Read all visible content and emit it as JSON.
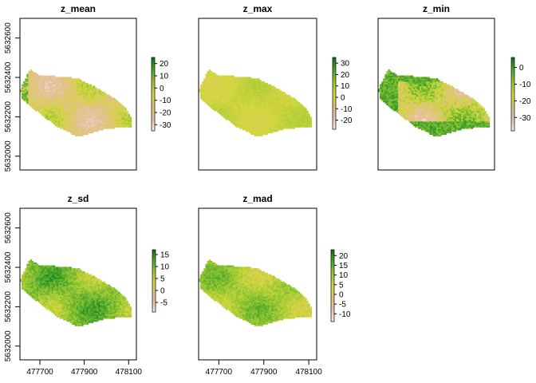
{
  "chart_data": [
    {
      "type": "heatmap",
      "title": "z_mean",
      "yticks": [
        5632000,
        5632200,
        5632400,
        5632600
      ],
      "xticks": [],
      "legend_ticks": [
        20,
        10,
        0,
        -10,
        -20,
        -30
      ],
      "legend_range": [
        -35,
        25
      ],
      "cell_range": [
        -33,
        8
      ],
      "palette": [
        "#f4f0ee",
        "#e8c2ad",
        "#dfc27f",
        "#d6d640",
        "#9cc934",
        "#4fa82c",
        "#067a1b"
      ],
      "legend": "right"
    },
    {
      "type": "heatmap",
      "title": "z_max",
      "yticks": [],
      "xticks": [],
      "legend_ticks": [
        30,
        20,
        10,
        0,
        -10,
        -20
      ],
      "legend_range": [
        -28,
        35
      ],
      "cell_range": [
        -2,
        12
      ],
      "palette": [
        "#f4f0ee",
        "#e8c2ad",
        "#dfc27f",
        "#d6d640",
        "#9cc934",
        "#4fa82c",
        "#067a1b"
      ],
      "legend": "right"
    },
    {
      "type": "heatmap",
      "title": "z_min",
      "yticks": [],
      "xticks": [],
      "legend_ticks": [
        0,
        -10,
        -20,
        -30
      ],
      "legend_range": [
        -38,
        6
      ],
      "cell_range": [
        -38,
        2
      ],
      "palette": [
        "#f4f0ee",
        "#e8c2ad",
        "#dfc27f",
        "#d6d640",
        "#9cc934",
        "#4fa82c",
        "#067a1b"
      ],
      "legend": "right"
    },
    {
      "type": "heatmap",
      "title": "z_sd",
      "yticks": [
        5632000,
        5632200,
        5632400,
        5632600
      ],
      "xticks": [
        477700,
        477900,
        478100
      ],
      "legend_ticks": [
        15,
        10,
        5,
        0,
        -5
      ],
      "legend_range": [
        -9,
        17
      ],
      "cell_range": [
        2,
        16
      ],
      "palette": [
        "#f4f0ee",
        "#e8c2ad",
        "#dfc27f",
        "#d6d640",
        "#9cc934",
        "#4fa82c",
        "#067a1b"
      ],
      "legend": "right"
    },
    {
      "type": "heatmap",
      "title": "z_mad",
      "yticks": [],
      "xticks": [
        477700,
        477900,
        478100
      ],
      "legend_ticks": [
        20,
        15,
        10,
        5,
        0,
        -5,
        -10
      ],
      "legend_range": [
        -14,
        23
      ],
      "cell_range": [
        0,
        18
      ],
      "palette": [
        "#f4f0ee",
        "#e8c2ad",
        "#dfc27f",
        "#d6d640",
        "#9cc934",
        "#4fa82c",
        "#067a1b"
      ],
      "legend": "right"
    }
  ]
}
